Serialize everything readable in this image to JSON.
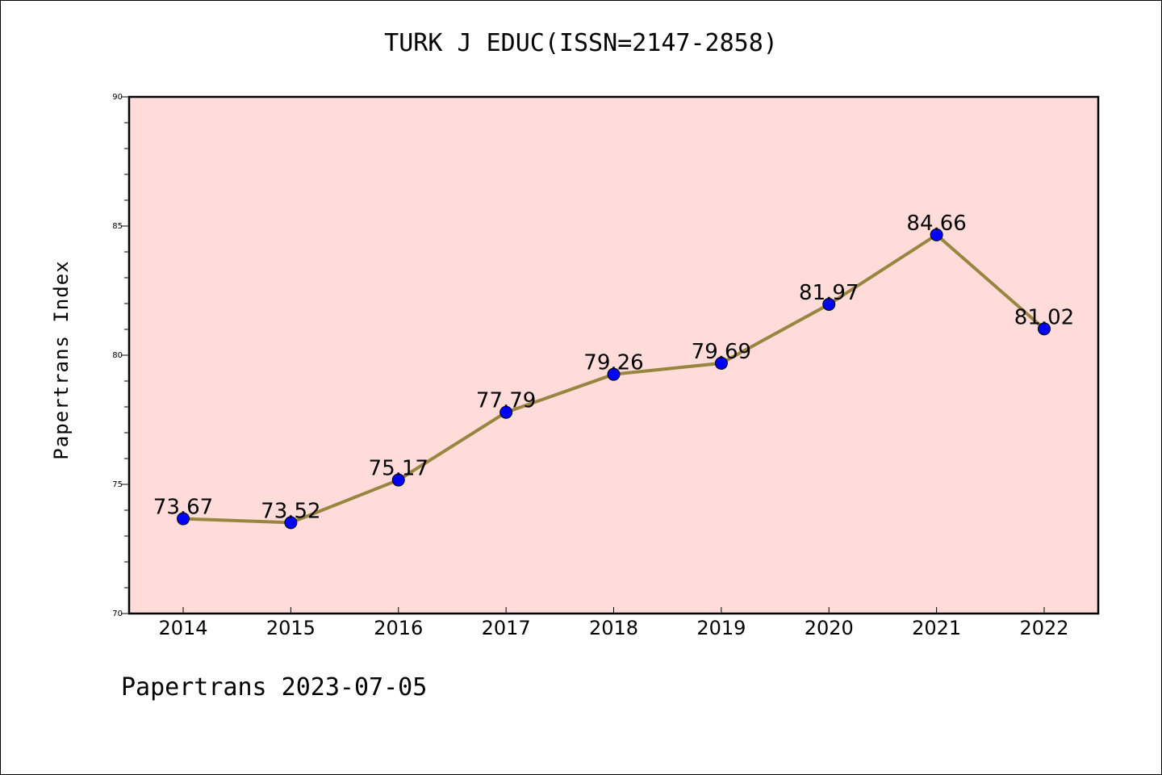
{
  "title": "TURK J EDUC(ISSN=2147-2858)",
  "ylabel": "Papertrans Index",
  "footer": "Papertrans 2023-07-05",
  "chart_data": {
    "type": "line",
    "title": "TURK J EDUC(ISSN=2147-2858)",
    "xlabel": "",
    "ylabel": "Papertrans Index",
    "categories": [
      "2014",
      "2015",
      "2016",
      "2017",
      "2018",
      "2019",
      "2020",
      "2021",
      "2022"
    ],
    "values": [
      73.67,
      73.52,
      75.17,
      77.79,
      79.26,
      79.69,
      81.97,
      84.66,
      81.02
    ],
    "data_labels": [
      "73.67",
      "73.52",
      "75.17",
      "77.79",
      "79.26",
      "79.69",
      "81.97",
      "84.66",
      "81.02"
    ],
    "ylim": [
      70,
      90
    ],
    "yticks": [
      70,
      75,
      80,
      85,
      90
    ],
    "grid": false,
    "legend": "none",
    "colors": {
      "plot_background": "#ffdcd9",
      "line": "#9a8540",
      "marker": "#0000ff"
    }
  }
}
